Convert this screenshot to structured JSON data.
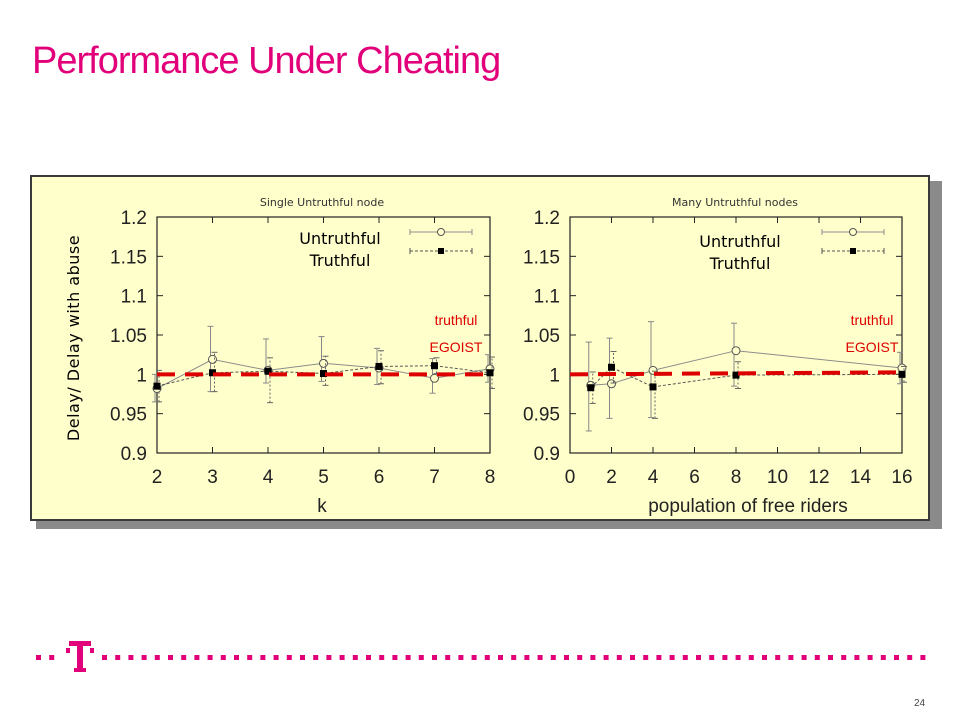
{
  "slide": {
    "title": "Performance Under Cheating",
    "page_number": "24",
    "accent_color": "#e2007a"
  },
  "figure": {
    "ylabel": "Delay/ Delay with abuse",
    "baseline_color": "#dd0000",
    "legend_labels": [
      "Untruthful",
      "Truthful"
    ],
    "overlay_labels": [
      "truthful",
      "EGOIST"
    ],
    "overlay_color": "#dd0000"
  },
  "chart_data": [
    {
      "type": "line",
      "title": "Single Untruthful node",
      "xlabel": "k",
      "ylabel": "Delay/ Delay with abuse",
      "xlim": [
        2,
        8
      ],
      "ylim": [
        0.9,
        1.2
      ],
      "x_ticks": [
        "2",
        "3",
        "4",
        "5",
        "6",
        "7",
        "8"
      ],
      "y_ticks": [
        "0.9",
        "0.95",
        "1",
        "1.05",
        "1.1",
        "1.15",
        "1.2"
      ],
      "baseline": 1.0,
      "series": [
        {
          "name": "Untruthful",
          "marker": "open-circle",
          "x": [
            2,
            3,
            4,
            5,
            6,
            7,
            8
          ],
          "y": [
            0.982,
            1.019,
            1.005,
            1.014,
            1.008,
            0.995,
            1.007
          ],
          "err_lo": [
            0.017,
            0.041,
            0.016,
            0.023,
            0.021,
            0.019,
            0.017
          ],
          "err_hi": [
            0.018,
            0.042,
            0.04,
            0.034,
            0.025,
            0.025,
            0.018
          ]
        },
        {
          "name": "Truthful",
          "marker": "filled-square",
          "x": [
            2,
            3,
            4,
            5,
            6,
            7,
            8
          ],
          "y": [
            0.985,
            1.002,
            1.004,
            1.001,
            1.01,
            1.011,
            1.002
          ],
          "err_lo": [
            0.02,
            0.024,
            0.04,
            0.015,
            0.022,
            0.01,
            0.02
          ],
          "err_hi": [
            0.02,
            0.026,
            0.017,
            0.022,
            0.02,
            0.01,
            0.02
          ]
        }
      ]
    },
    {
      "type": "line",
      "title": "Many Untruthful nodes",
      "xlabel": "population of free riders",
      "ylabel": "",
      "xlim": [
        0,
        16
      ],
      "ylim": [
        0.9,
        1.2
      ],
      "x_ticks": [
        "0",
        "2",
        "4",
        "6",
        "8",
        "10",
        "12",
        "14",
        "16"
      ],
      "y_ticks": [
        "0.9",
        "0.95",
        "1",
        "1.05",
        "1.1",
        "1.15",
        "1.2"
      ],
      "baseline": 1.0,
      "series": [
        {
          "name": "Untruthful",
          "marker": "open-circle",
          "x": [
            1,
            2,
            4,
            8,
            16
          ],
          "y": [
            0.986,
            0.988,
            1.005,
            1.03,
            1.008
          ],
          "err_lo": [
            0.058,
            0.044,
            0.06,
            0.045,
            0.02
          ],
          "err_hi": [
            0.055,
            0.058,
            0.062,
            0.035,
            0.02
          ]
        },
        {
          "name": "Truthful",
          "marker": "filled-square",
          "x": [
            1,
            2,
            4,
            8,
            16
          ],
          "y": [
            0.983,
            1.009,
            0.984,
            0.999,
            1.0
          ],
          "err_lo": [
            0.02,
            0.02,
            0.04,
            0.017,
            0.01
          ],
          "err_hi": [
            0.02,
            0.02,
            0.02,
            0.017,
            0.01
          ]
        }
      ]
    }
  ]
}
